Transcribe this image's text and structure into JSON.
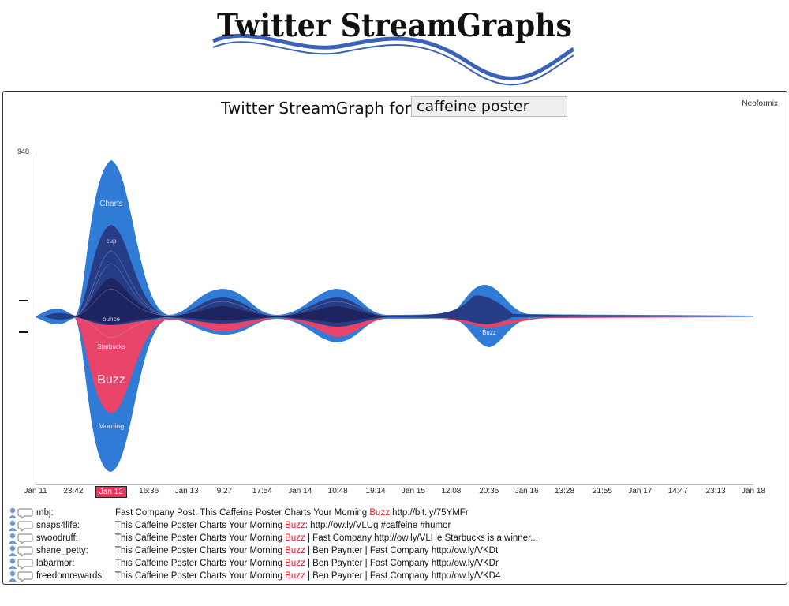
{
  "logo": {
    "text": "Twitter StreamGraphs"
  },
  "header": {
    "title": "Twitter StreamGraph for",
    "query_value": "caffeine poster",
    "brand": "Neoformix"
  },
  "graph": {
    "max_value_label": "948",
    "colors": {
      "outer": "#2f7bd6",
      "inner": "#263c84",
      "dark": "#1e2460",
      "highlight": "#e8446a"
    },
    "stream_labels": [
      {
        "text": "Charts"
      },
      {
        "text": "cup"
      },
      {
        "text": "ounce"
      },
      {
        "text": "Starbucks"
      },
      {
        "text": "Buzz"
      },
      {
        "text": "Morning"
      },
      {
        "text": "Buzz"
      }
    ],
    "axis_ticks": [
      "Jan 11",
      "23:42",
      "Jan 12",
      "16:36",
      "Jan 13",
      "9:27",
      "17:54",
      "Jan 14",
      "10:48",
      "19:14",
      "Jan 15",
      "12:08",
      "20:35",
      "Jan 16",
      "13:28",
      "21:55",
      "Jan 17",
      "14:47",
      "23:13",
      "Jan 18"
    ],
    "selected_tick": "Jan 12"
  },
  "tweets": [
    {
      "user": "mbj:",
      "before": "Fast Company Post: This Caffeine Poster Charts Your Morning ",
      "highlight": "Buzz",
      "after": " http://bit.ly/75YMFr"
    },
    {
      "user": "snaps4life:",
      "before": "This Caffeine Poster Charts Your Morning ",
      "highlight": "Buzz",
      "after": ": http://ow.ly/VLUg #caffeine #humor"
    },
    {
      "user": "swoodruff:",
      "before": "This Caffeine Poster Charts Your Morning ",
      "highlight": "Buzz",
      "after": " | Fast Company http://ow.ly/VLHe Starbucks is a winner..."
    },
    {
      "user": "shane_petty:",
      "before": "This Caffeine Poster Charts Your Morning ",
      "highlight": "Buzz",
      "after": " | Ben Paynter | Fast Company http://ow.ly/VKDt"
    },
    {
      "user": "labarmor:",
      "before": "This Caffeine Poster Charts Your Morning ",
      "highlight": "Buzz",
      "after": " | Ben Paynter | Fast Company http://ow.ly/VKDr"
    },
    {
      "user": "freedomrewards:",
      "before": "This Caffeine Poster Charts Your Morning ",
      "highlight": "Buzz",
      "after": " | Ben Paynter | Fast Company http://ow.ly/VKD4"
    }
  ]
}
